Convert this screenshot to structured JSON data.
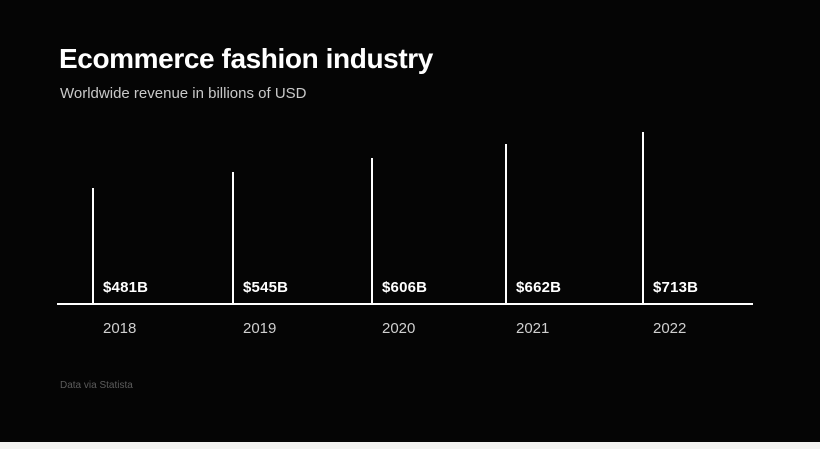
{
  "chart_data": {
    "type": "bar",
    "title": "Ecommerce fashion industry",
    "subtitle": "Worldwide revenue in billions of USD",
    "source": "Data via Statista",
    "categories": [
      "2018",
      "2019",
      "2020",
      "2021",
      "2022"
    ],
    "values": [
      481,
      545,
      606,
      662,
      713
    ],
    "value_labels": [
      "$481B",
      "$545B",
      "$606B",
      "$662B",
      "$713B"
    ],
    "xlabel": "",
    "ylabel": "Revenue in billions of USD",
    "ylim": [
      0,
      750
    ],
    "grid": false,
    "legend": false,
    "bar_style": "thin-vertical-line",
    "colors": {
      "background": "#050505",
      "bar": "#ffffff",
      "axis": "#ffffff",
      "title": "#ffffff",
      "subtitle": "#c9c9c9",
      "value_label": "#ffffff",
      "category_label": "#cfcfcf",
      "source": "#5c5c5c",
      "bottom_strip": "#f3f3f1"
    }
  }
}
